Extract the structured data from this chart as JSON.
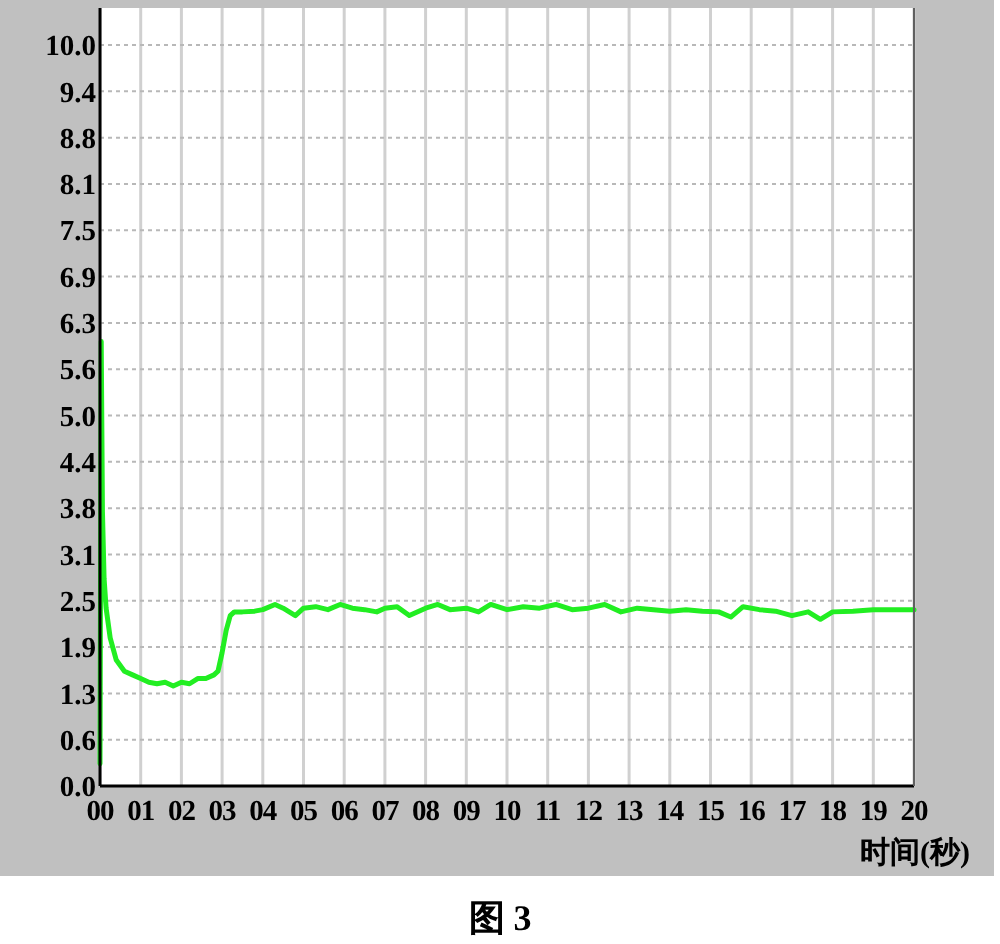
{
  "chart_data": {
    "type": "line",
    "title": "图 3",
    "xlabel": "时间(秒)",
    "xlim": [
      0,
      20
    ],
    "ylim": [
      0,
      10.5
    ],
    "xticks": [
      {
        "value": 0,
        "label": "00"
      },
      {
        "value": 1,
        "label": "01"
      },
      {
        "value": 2,
        "label": "02"
      },
      {
        "value": 3,
        "label": "03"
      },
      {
        "value": 4,
        "label": "04"
      },
      {
        "value": 5,
        "label": "05"
      },
      {
        "value": 6,
        "label": "06"
      },
      {
        "value": 7,
        "label": "07"
      },
      {
        "value": 8,
        "label": "08"
      },
      {
        "value": 9,
        "label": "09"
      },
      {
        "value": 10,
        "label": "10"
      },
      {
        "value": 11,
        "label": "11"
      },
      {
        "value": 12,
        "label": "12"
      },
      {
        "value": 13,
        "label": "13"
      },
      {
        "value": 14,
        "label": "14"
      },
      {
        "value": 15,
        "label": "15"
      },
      {
        "value": 16,
        "label": "16"
      },
      {
        "value": 17,
        "label": "17"
      },
      {
        "value": 18,
        "label": "18"
      },
      {
        "value": 19,
        "label": "19"
      },
      {
        "value": 20,
        "label": "20"
      }
    ],
    "yticks": [
      {
        "value": 0,
        "label": "0.0"
      },
      {
        "value": 0.625,
        "label": "0.6"
      },
      {
        "value": 1.25,
        "label": "1.3"
      },
      {
        "value": 1.875,
        "label": "1.9"
      },
      {
        "value": 2.5,
        "label": "2.5"
      },
      {
        "value": 3.125,
        "label": "3.1"
      },
      {
        "value": 3.75,
        "label": "3.8"
      },
      {
        "value": 4.375,
        "label": "4.4"
      },
      {
        "value": 5,
        "label": "5.0"
      },
      {
        "value": 5.625,
        "label": "5.6"
      },
      {
        "value": 6.25,
        "label": "6.3"
      },
      {
        "value": 6.875,
        "label": "6.9"
      },
      {
        "value": 7.5,
        "label": "7.5"
      },
      {
        "value": 8.125,
        "label": "8.1"
      },
      {
        "value": 8.75,
        "label": "8.8"
      },
      {
        "value": 9.375,
        "label": "9.4"
      },
      {
        "value": 10,
        "label": "10.0"
      }
    ],
    "grid": true,
    "marker": "none",
    "line_style": "solid",
    "series": [
      {
        "color": "#22ee22",
        "x": [
          0,
          0.03,
          0.06,
          0.1,
          0.15,
          0.25,
          0.4,
          0.6,
          0.8,
          1.0,
          1.2,
          1.4,
          1.6,
          1.8,
          2.0,
          2.2,
          2.4,
          2.6,
          2.8,
          2.9,
          3.0,
          3.1,
          3.2,
          3.3,
          3.5,
          3.8,
          4.0,
          4.3,
          4.5,
          4.8,
          5.0,
          5.3,
          5.6,
          5.9,
          6.2,
          6.5,
          6.8,
          7.0,
          7.3,
          7.6,
          8.0,
          8.3,
          8.6,
          9.0,
          9.3,
          9.6,
          10.0,
          10.4,
          10.8,
          11.2,
          11.6,
          12.0,
          12.4,
          12.8,
          13.2,
          13.6,
          14.0,
          14.4,
          14.8,
          15.2,
          15.5,
          15.8,
          16.2,
          16.6,
          17.0,
          17.4,
          17.7,
          18.0,
          18.5,
          19.0,
          19.5,
          20.0
        ],
        "values": [
          0.3,
          6.0,
          3.7,
          2.8,
          2.4,
          2.0,
          1.7,
          1.55,
          1.5,
          1.45,
          1.4,
          1.38,
          1.4,
          1.35,
          1.4,
          1.38,
          1.45,
          1.45,
          1.5,
          1.55,
          1.8,
          2.1,
          2.3,
          2.35,
          2.35,
          2.36,
          2.38,
          2.45,
          2.4,
          2.3,
          2.4,
          2.42,
          2.38,
          2.45,
          2.4,
          2.38,
          2.35,
          2.4,
          2.42,
          2.3,
          2.4,
          2.45,
          2.38,
          2.4,
          2.35,
          2.45,
          2.38,
          2.42,
          2.4,
          2.45,
          2.38,
          2.4,
          2.45,
          2.35,
          2.4,
          2.38,
          2.36,
          2.38,
          2.36,
          2.35,
          2.28,
          2.42,
          2.38,
          2.36,
          2.3,
          2.35,
          2.25,
          2.35,
          2.36,
          2.38,
          2.38,
          2.38
        ]
      }
    ]
  }
}
